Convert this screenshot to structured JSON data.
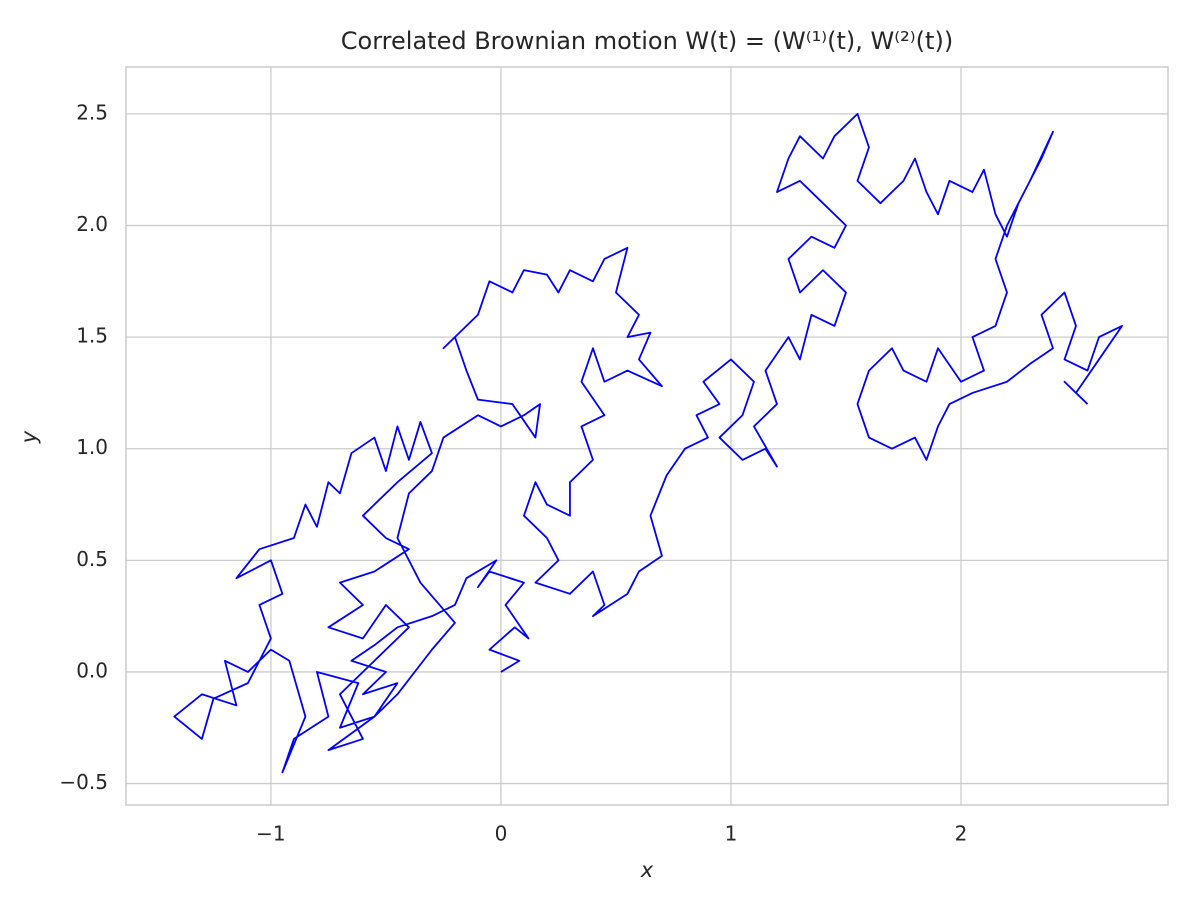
{
  "chart_data": {
    "type": "line",
    "title": "Correlated Brownian motion W(t) = (W⁽¹⁾(t), W⁽²⁾(t))",
    "xlabel": "x",
    "ylabel": "y",
    "color": "blue",
    "grid": true,
    "xlim": [
      -1.63,
      2.9
    ],
    "ylim": [
      -0.596,
      2.71
    ],
    "xticks": [
      {
        "value": -1,
        "label": "−1"
      },
      0,
      1,
      2
    ],
    "yticks": [
      {
        "value": -0.5,
        "label": "−0.5"
      },
      {
        "value": 0,
        "label": "0.0"
      },
      0.5,
      {
        "value": 1,
        "label": "1.0"
      },
      1.5,
      {
        "value": 2,
        "label": "2.0"
      },
      2.5
    ],
    "x": [
      0.0,
      0.08,
      -0.05,
      0.06,
      0.12,
      0.02,
      0.1,
      -0.05,
      -0.1,
      -0.02,
      -0.15,
      -0.2,
      -0.3,
      -0.45,
      -0.55,
      -0.65,
      -0.5,
      -0.6,
      -0.45,
      -0.55,
      -0.7,
      -0.62,
      -0.8,
      -0.75,
      -0.9,
      -0.95,
      -0.85,
      -0.92,
      -1.0,
      -1.1,
      -1.2,
      -1.15,
      -1.3,
      -1.42,
      -1.3,
      -1.25,
      -1.1,
      -1.0,
      -1.05,
      -0.95,
      -1.0,
      -1.15,
      -1.05,
      -0.9,
      -0.85,
      -0.8,
      -0.75,
      -0.7,
      -0.65,
      -0.55,
      -0.5,
      -0.45,
      -0.4,
      -0.35,
      -0.3,
      -0.45,
      -0.6,
      -0.5,
      -0.4,
      -0.55,
      -0.7,
      -0.6,
      -0.75,
      -0.6,
      -0.5,
      -0.4,
      -0.55,
      -0.7,
      -0.6,
      -0.75,
      -0.55,
      -0.45,
      -0.3,
      -0.2,
      -0.35,
      -0.45,
      -0.4,
      -0.3,
      -0.25,
      -0.1,
      0.0,
      0.1,
      0.17,
      0.15,
      0.05,
      -0.1,
      -0.15,
      -0.2,
      -0.25,
      -0.1,
      -0.05,
      0.05,
      0.1,
      0.2,
      0.25,
      0.3,
      0.4,
      0.45,
      0.55,
      0.5,
      0.6,
      0.55,
      0.65,
      0.6,
      0.7,
      0.55,
      0.45,
      0.4,
      0.35,
      0.45,
      0.35,
      0.4,
      0.3,
      0.3,
      0.2,
      0.15,
      0.1,
      0.2,
      0.25,
      0.15,
      0.3,
      0.4,
      0.45,
      0.4,
      0.55,
      0.6,
      0.7,
      0.65,
      0.72,
      0.8,
      0.9,
      0.85,
      0.95,
      0.88,
      1.0,
      1.1,
      1.05,
      0.95,
      1.05,
      1.15,
      1.2,
      1.1,
      1.2,
      1.15,
      1.25,
      1.3,
      1.35,
      1.45,
      1.5,
      1.4,
      1.3,
      1.25,
      1.35,
      1.45,
      1.5,
      1.4,
      1.3,
      1.2,
      1.25,
      1.3,
      1.4,
      1.45,
      1.55,
      1.6,
      1.55,
      1.65,
      1.75,
      1.8,
      1.85,
      1.9,
      1.95,
      2.05,
      2.1,
      2.15,
      2.2,
      2.25,
      2.35,
      2.4,
      2.3,
      2.2,
      2.15,
      2.2,
      2.15,
      2.05,
      2.1,
      2.0,
      1.9,
      1.85,
      1.75,
      1.7,
      1.6,
      1.55,
      1.6,
      1.7,
      1.8,
      1.85,
      1.9,
      1.95,
      2.05,
      2.2,
      2.3,
      2.4,
      2.35,
      2.45,
      2.5,
      2.45,
      2.55,
      2.6,
      2.7,
      2.6,
      2.5,
      2.45,
      2.55
    ],
    "values": [
      0.0,
      0.05,
      0.1,
      0.2,
      0.15,
      0.3,
      0.4,
      0.45,
      0.38,
      0.5,
      0.42,
      0.3,
      0.25,
      0.2,
      0.12,
      0.05,
      0.0,
      -0.1,
      -0.05,
      -0.2,
      -0.25,
      -0.05,
      0.0,
      -0.2,
      -0.3,
      -0.45,
      -0.2,
      0.05,
      0.1,
      0.0,
      0.05,
      -0.15,
      -0.1,
      -0.2,
      -0.3,
      -0.12,
      -0.05,
      0.15,
      0.3,
      0.35,
      0.5,
      0.42,
      0.55,
      0.6,
      0.75,
      0.65,
      0.85,
      0.8,
      0.98,
      1.05,
      0.9,
      1.1,
      0.95,
      1.12,
      0.98,
      0.85,
      0.7,
      0.6,
      0.55,
      0.45,
      0.4,
      0.3,
      0.2,
      0.15,
      0.3,
      0.2,
      0.05,
      -0.1,
      -0.3,
      -0.35,
      -0.2,
      -0.1,
      0.1,
      0.22,
      0.4,
      0.6,
      0.8,
      0.9,
      1.05,
      1.15,
      1.1,
      1.15,
      1.2,
      1.05,
      1.2,
      1.22,
      1.35,
      1.5,
      1.45,
      1.6,
      1.75,
      1.7,
      1.8,
      1.78,
      1.7,
      1.8,
      1.75,
      1.85,
      1.9,
      1.7,
      1.6,
      1.5,
      1.52,
      1.4,
      1.28,
      1.35,
      1.3,
      1.45,
      1.3,
      1.15,
      1.1,
      0.95,
      0.85,
      0.7,
      0.75,
      0.85,
      0.7,
      0.6,
      0.5,
      0.4,
      0.35,
      0.45,
      0.3,
      0.25,
      0.35,
      0.45,
      0.52,
      0.7,
      0.88,
      1.0,
      1.05,
      1.15,
      1.2,
      1.3,
      1.4,
      1.3,
      1.15,
      1.05,
      0.95,
      1.0,
      0.92,
      1.1,
      1.2,
      1.35,
      1.5,
      1.4,
      1.6,
      1.55,
      1.7,
      1.8,
      1.7,
      1.85,
      1.95,
      1.9,
      2.0,
      2.1,
      2.2,
      2.15,
      2.3,
      2.4,
      2.3,
      2.4,
      2.5,
      2.35,
      2.2,
      2.1,
      2.2,
      2.3,
      2.15,
      2.05,
      2.2,
      2.15,
      2.25,
      2.05,
      1.95,
      2.1,
      2.3,
      2.42,
      2.2,
      2.0,
      1.85,
      1.7,
      1.55,
      1.5,
      1.35,
      1.3,
      1.45,
      1.3,
      1.35,
      1.45,
      1.35,
      1.2,
      1.05,
      1.0,
      1.05,
      0.95,
      1.1,
      1.2,
      1.25,
      1.3,
      1.38,
      1.45,
      1.6,
      1.7,
      1.55,
      1.4,
      1.35,
      1.5,
      1.55,
      1.4,
      1.25,
      1.3,
      1.2
    ]
  }
}
